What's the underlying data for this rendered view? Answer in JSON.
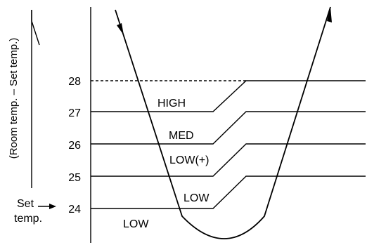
{
  "yaxis_title": "(Room temp. – Set temp.)",
  "set_temp_label_line1": "Set",
  "set_temp_label_line2": "temp.",
  "ticks": [
    "28",
    "27",
    "26",
    "25",
    "24"
  ],
  "levels": {
    "high": "HIGH",
    "med": "MED",
    "low_plus": "LOW(+)",
    "low": "LOW",
    "low_bottom": "LOW"
  }
}
